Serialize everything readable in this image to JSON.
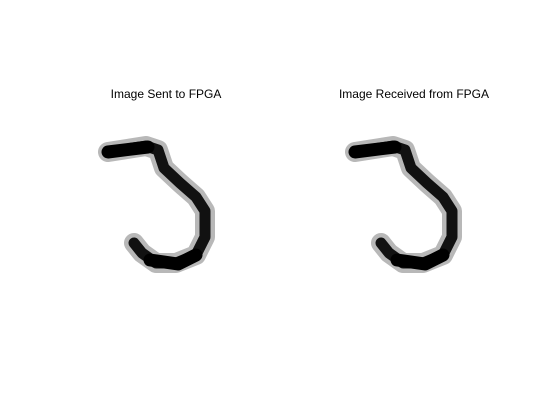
{
  "panels": [
    {
      "title": "Image Sent to FPGA"
    },
    {
      "title": "Image Received from FPGA"
    }
  ],
  "colors": {
    "background": "#ffffff",
    "ink": "#000000"
  }
}
